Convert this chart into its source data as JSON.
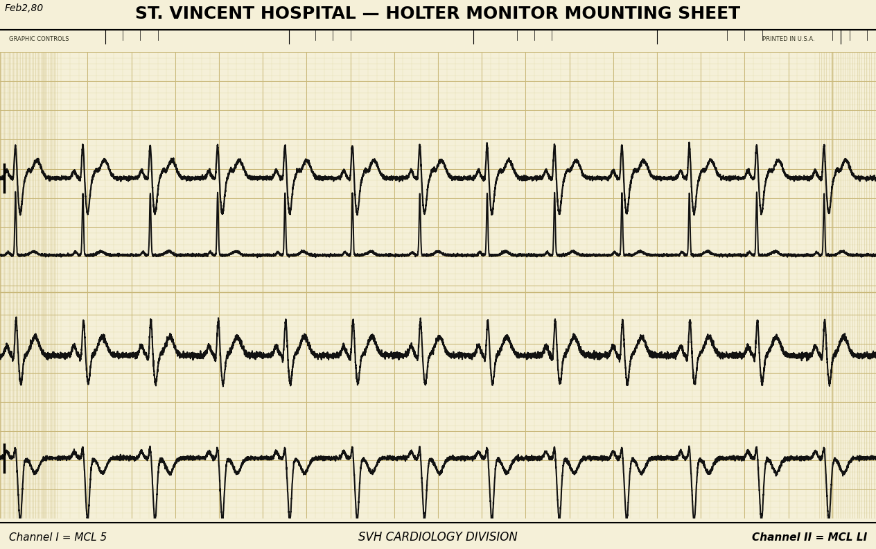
{
  "title": "ST. VINCENT HOSPITAL — HOLTER MONITOR MOUNTING SHEET",
  "title_prefix": "Feb2,80",
  "subtitle_left": "GRAPHIC CONTROLS",
  "subtitle_right": "PRINTED IN U.S.A.",
  "bottom_left": "Channel I = MCL 5",
  "bottom_center": "SVH CARDIOLOGY DIVISION",
  "bottom_right": "Channel II = MCL LI",
  "paper_color": "#f5f0d8",
  "paper_color2": "#faf6e4",
  "grid_major_color": "#c9b87a",
  "grid_minor_color": "#e3d9a8",
  "ecg_color": "#111111",
  "header_line_color": "#222222",
  "title_fontsize": 18,
  "footer_fontsize": 11,
  "bpm": 78,
  "num_beats": 13
}
